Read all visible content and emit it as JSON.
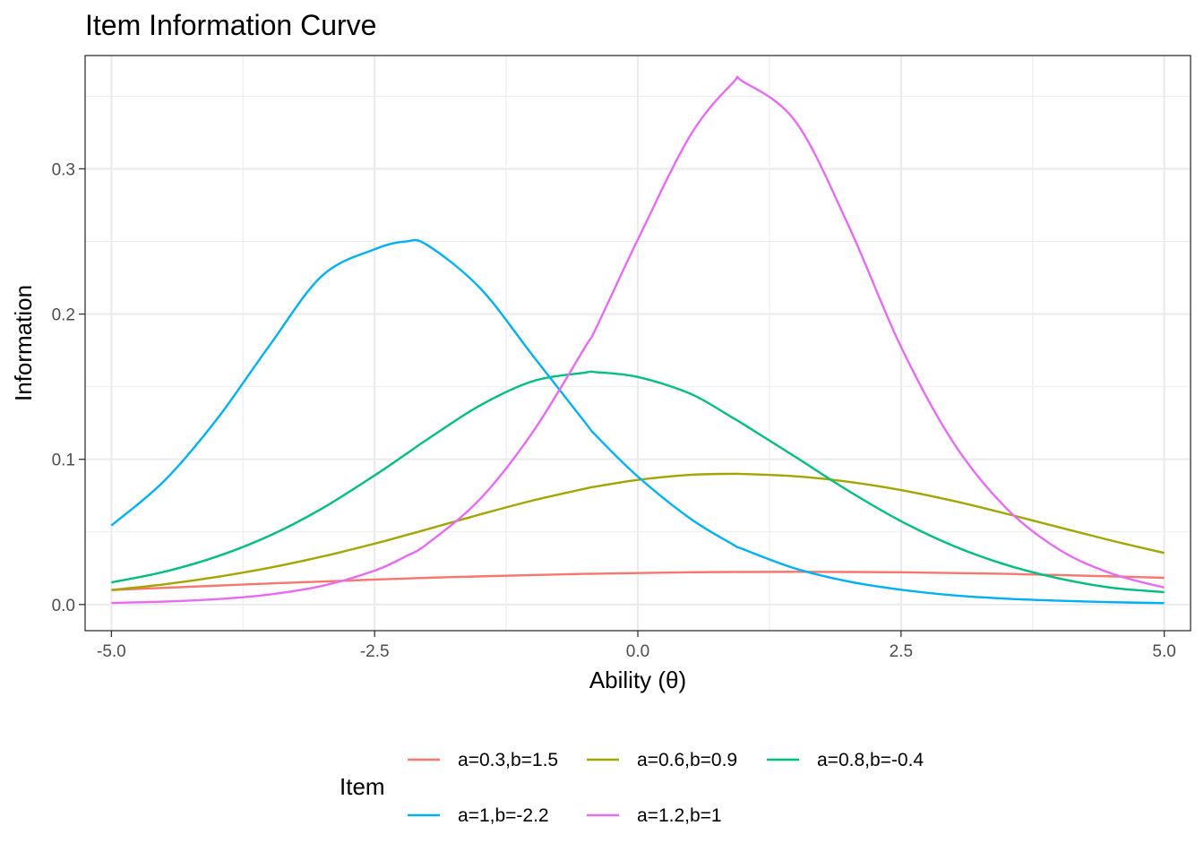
{
  "chart_data": {
    "type": "line",
    "title": "Item Information Curve",
    "xlabel": "Ability (θ)",
    "ylabel": "Information",
    "xlim": [
      -5.25,
      5.25
    ],
    "ylim": [
      -0.018,
      0.378
    ],
    "x_ticks": [
      -5.0,
      -2.5,
      0.0,
      2.5,
      5.0
    ],
    "x_tick_labels": [
      "-5.0",
      "-2.5",
      "0.0",
      "2.5",
      "5.0"
    ],
    "x_minor_ticks": [
      -3.75,
      -1.25,
      1.25,
      3.75
    ],
    "y_ticks": [
      0.0,
      0.1,
      0.2,
      0.3
    ],
    "y_tick_labels": [
      "0.0",
      "0.1",
      "0.2",
      "0.3"
    ],
    "y_minor_ticks": [
      0.05,
      0.15,
      0.25,
      0.35
    ],
    "grid": true,
    "legend": {
      "title": "Item",
      "position": "bottom"
    },
    "x": [
      -5.0,
      -4.5,
      -4.0,
      -3.5,
      -3.0,
      -2.5,
      -2.2,
      -2.0,
      -1.5,
      -1.0,
      -0.5,
      -0.4,
      0.0,
      0.5,
      0.9,
      1.0,
      1.5,
      2.0,
      2.5,
      3.0,
      3.5,
      4.0,
      4.5,
      5.0
    ],
    "series": [
      {
        "name": "a=0.3,b=1.5",
        "color": "#F8766D",
        "values": [
          0.01,
          0.0115,
          0.013,
          0.0145,
          0.0158,
          0.0172,
          0.0179,
          0.0184,
          0.0194,
          0.0203,
          0.0211,
          0.0212,
          0.0217,
          0.0222,
          0.0224,
          0.0224,
          0.0225,
          0.0224,
          0.0222,
          0.0217,
          0.0211,
          0.0203,
          0.0194,
          0.0184
        ]
      },
      {
        "name": "a=0.6,b=0.9",
        "color": "#A3A500",
        "values": [
          0.01,
          0.0139,
          0.019,
          0.0253,
          0.033,
          0.0419,
          0.0478,
          0.0518,
          0.062,
          0.0716,
          0.0798,
          0.0812,
          0.0858,
          0.0893,
          0.09,
          0.0899,
          0.0883,
          0.0845,
          0.0788,
          0.0713,
          0.0625,
          0.0532,
          0.044,
          0.0355
        ]
      },
      {
        "name": "a=0.8,b=-0.4",
        "color": "#00BF7D",
        "values": [
          0.0152,
          0.0225,
          0.033,
          0.0473,
          0.0661,
          0.0889,
          0.1037,
          0.1137,
          0.137,
          0.1537,
          0.1597,
          0.16,
          0.1567,
          0.1451,
          0.1286,
          0.1243,
          0.1015,
          0.0783,
          0.0574,
          0.0403,
          0.0273,
          0.018,
          0.0116,
          0.0085
        ]
      },
      {
        "name": "a=1,b=-2.2",
        "color": "#00B0F6",
        "values": [
          0.0544,
          0.085,
          0.1274,
          0.1782,
          0.2263,
          0.2446,
          0.25,
          0.2475,
          0.218,
          0.1716,
          0.1253,
          0.1165,
          0.0881,
          0.0591,
          0.0415,
          0.0381,
          0.0247,
          0.0159,
          0.0102,
          0.0063,
          0.004,
          0.0026,
          0.0016,
          0.001
        ]
      },
      {
        "name": "a=1.2,b=1",
        "color": "#E76BF3",
        "values": [
          0.0011,
          0.002,
          0.0037,
          0.0069,
          0.0128,
          0.0233,
          0.0333,
          0.0418,
          0.0725,
          0.1185,
          0.1774,
          0.1898,
          0.2513,
          0.3232,
          0.359,
          0.36,
          0.3324,
          0.2611,
          0.1774,
          0.1112,
          0.0663,
          0.0379,
          0.0213,
          0.0117
        ]
      }
    ]
  }
}
